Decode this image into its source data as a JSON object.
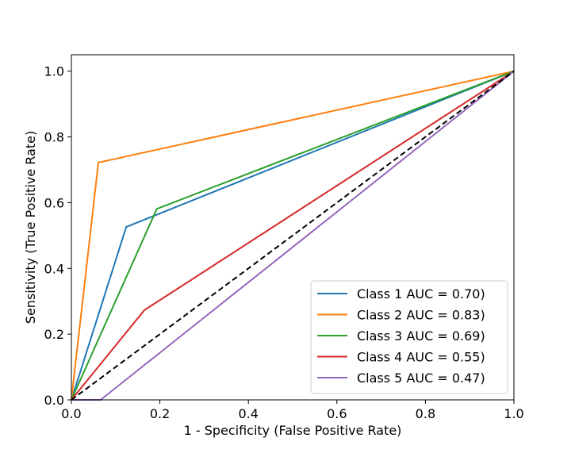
{
  "chart_data": {
    "type": "line",
    "title": "",
    "xlabel": "1 - Specificity (False Positive Rate)",
    "ylabel": "Sensitivity (True Positive Rate)",
    "xlim": [
      0.0,
      1.0
    ],
    "ylim": [
      0.0,
      1.05
    ],
    "xticks": [
      "0.0",
      "0.2",
      "0.4",
      "0.6",
      "0.8",
      "1.0"
    ],
    "yticks": [
      "0.0",
      "0.2",
      "0.4",
      "0.6",
      "0.8",
      "1.0"
    ],
    "grid": false,
    "legend_position": "lower-right",
    "series": [
      {
        "name": "Class 1 AUC = 0.70)",
        "color": "#1f77b4",
        "x": [
          0.0,
          0.124,
          1.0
        ],
        "y": [
          0.0,
          0.526,
          1.0
        ]
      },
      {
        "name": "Class 2 AUC = 0.83)",
        "color": "#ff7f0e",
        "x": [
          0.0,
          0.061,
          1.0
        ],
        "y": [
          0.0,
          0.722,
          1.0
        ]
      },
      {
        "name": "Class 3 AUC = 0.69)",
        "color": "#2ca02c",
        "x": [
          0.0,
          0.193,
          1.0
        ],
        "y": [
          0.0,
          0.581,
          1.0
        ]
      },
      {
        "name": "Class 4 AUC = 0.55)",
        "color": "#d62728",
        "x": [
          0.0,
          0.165,
          1.0
        ],
        "y": [
          0.0,
          0.273,
          1.0
        ]
      },
      {
        "name": "Class 5 AUC = 0.47)",
        "color": "#9467bd",
        "x": [
          0.0,
          0.066,
          1.0
        ],
        "y": [
          0.0,
          0.0,
          1.0
        ]
      }
    ],
    "reference_line": {
      "x": [
        0.0,
        1.0
      ],
      "y": [
        0.0,
        1.0
      ],
      "color": "#000000",
      "style": "dashed"
    }
  }
}
